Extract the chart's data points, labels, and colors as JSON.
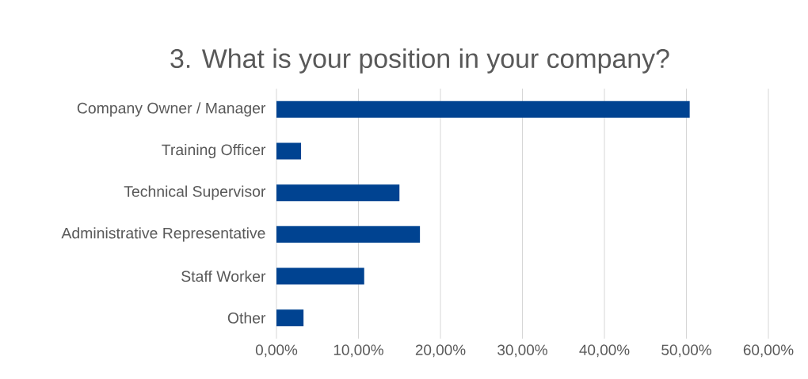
{
  "chart_data": {
    "type": "bar",
    "orientation": "horizontal",
    "title": "3. What is your position in your company?",
    "categories": [
      "Company Owner / Manager",
      "Training Officer",
      "Technical Supervisor",
      "Administrative Representative",
      "Staff Worker",
      "Other"
    ],
    "values": [
      50.4,
      3.0,
      15.0,
      17.5,
      10.7,
      3.3
    ],
    "color": "#004391",
    "xlim": [
      0,
      60
    ],
    "xticks": [
      {
        "value": 0,
        "label": "0,00%"
      },
      {
        "value": 10,
        "label": "10,00%"
      },
      {
        "value": 20,
        "label": "20,00%"
      },
      {
        "value": 30,
        "label": "30,00%"
      },
      {
        "value": 40,
        "label": "40,00%"
      },
      {
        "value": 50,
        "label": "50,00%"
      },
      {
        "value": 60,
        "label": "60,00%"
      }
    ],
    "grid": "x"
  }
}
